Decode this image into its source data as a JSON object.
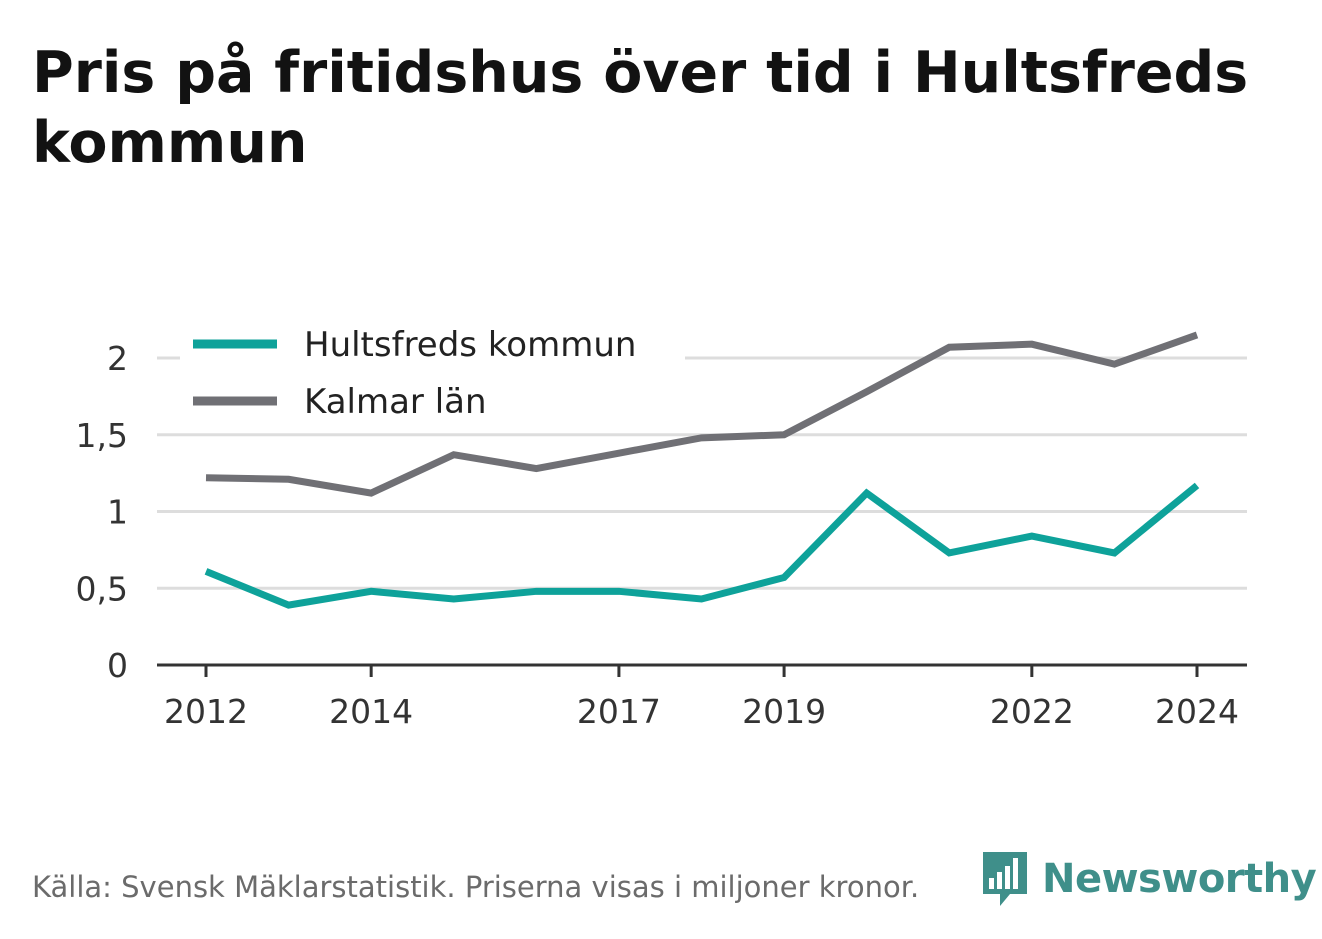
{
  "title": "Pris på fritidshus över tid i Hultsfreds kommun",
  "source": "Källa: Svensk Mäklarstatistik. Priserna visas i miljoner kronor.",
  "logo_text": "Newsworthy",
  "colors": {
    "series1": "#0ea29a",
    "series2": "#707075",
    "grid": "#dddddd",
    "axis": "#333333",
    "logo": "#3f8f8a"
  },
  "chart_data": {
    "type": "line",
    "x": [
      2012,
      2013,
      2014,
      2015,
      2016,
      2017,
      2018,
      2019,
      2020,
      2021,
      2022,
      2023,
      2024
    ],
    "xticks": [
      "2012",
      "2014",
      "2017",
      "2019",
      "2022",
      "2024"
    ],
    "xtick_values": [
      2012,
      2014,
      2017,
      2019,
      2022,
      2024
    ],
    "yticks": [
      "0",
      "0,5",
      "1",
      "1,5",
      "2"
    ],
    "ytick_values": [
      0,
      0.5,
      1,
      1.5,
      2
    ],
    "ylim": [
      0,
      2.2
    ],
    "grid": true,
    "legend_position": "top-left",
    "series": [
      {
        "name": "Hultsfreds kommun",
        "values": [
          0.61,
          0.39,
          0.48,
          0.43,
          0.48,
          0.48,
          0.43,
          0.57,
          1.12,
          0.73,
          0.84,
          0.73,
          1.17
        ]
      },
      {
        "name": "Kalmar län",
        "values": [
          1.22,
          1.21,
          1.12,
          1.37,
          1.28,
          1.38,
          1.48,
          1.5,
          1.78,
          2.07,
          2.09,
          1.96,
          2.15
        ]
      }
    ]
  }
}
